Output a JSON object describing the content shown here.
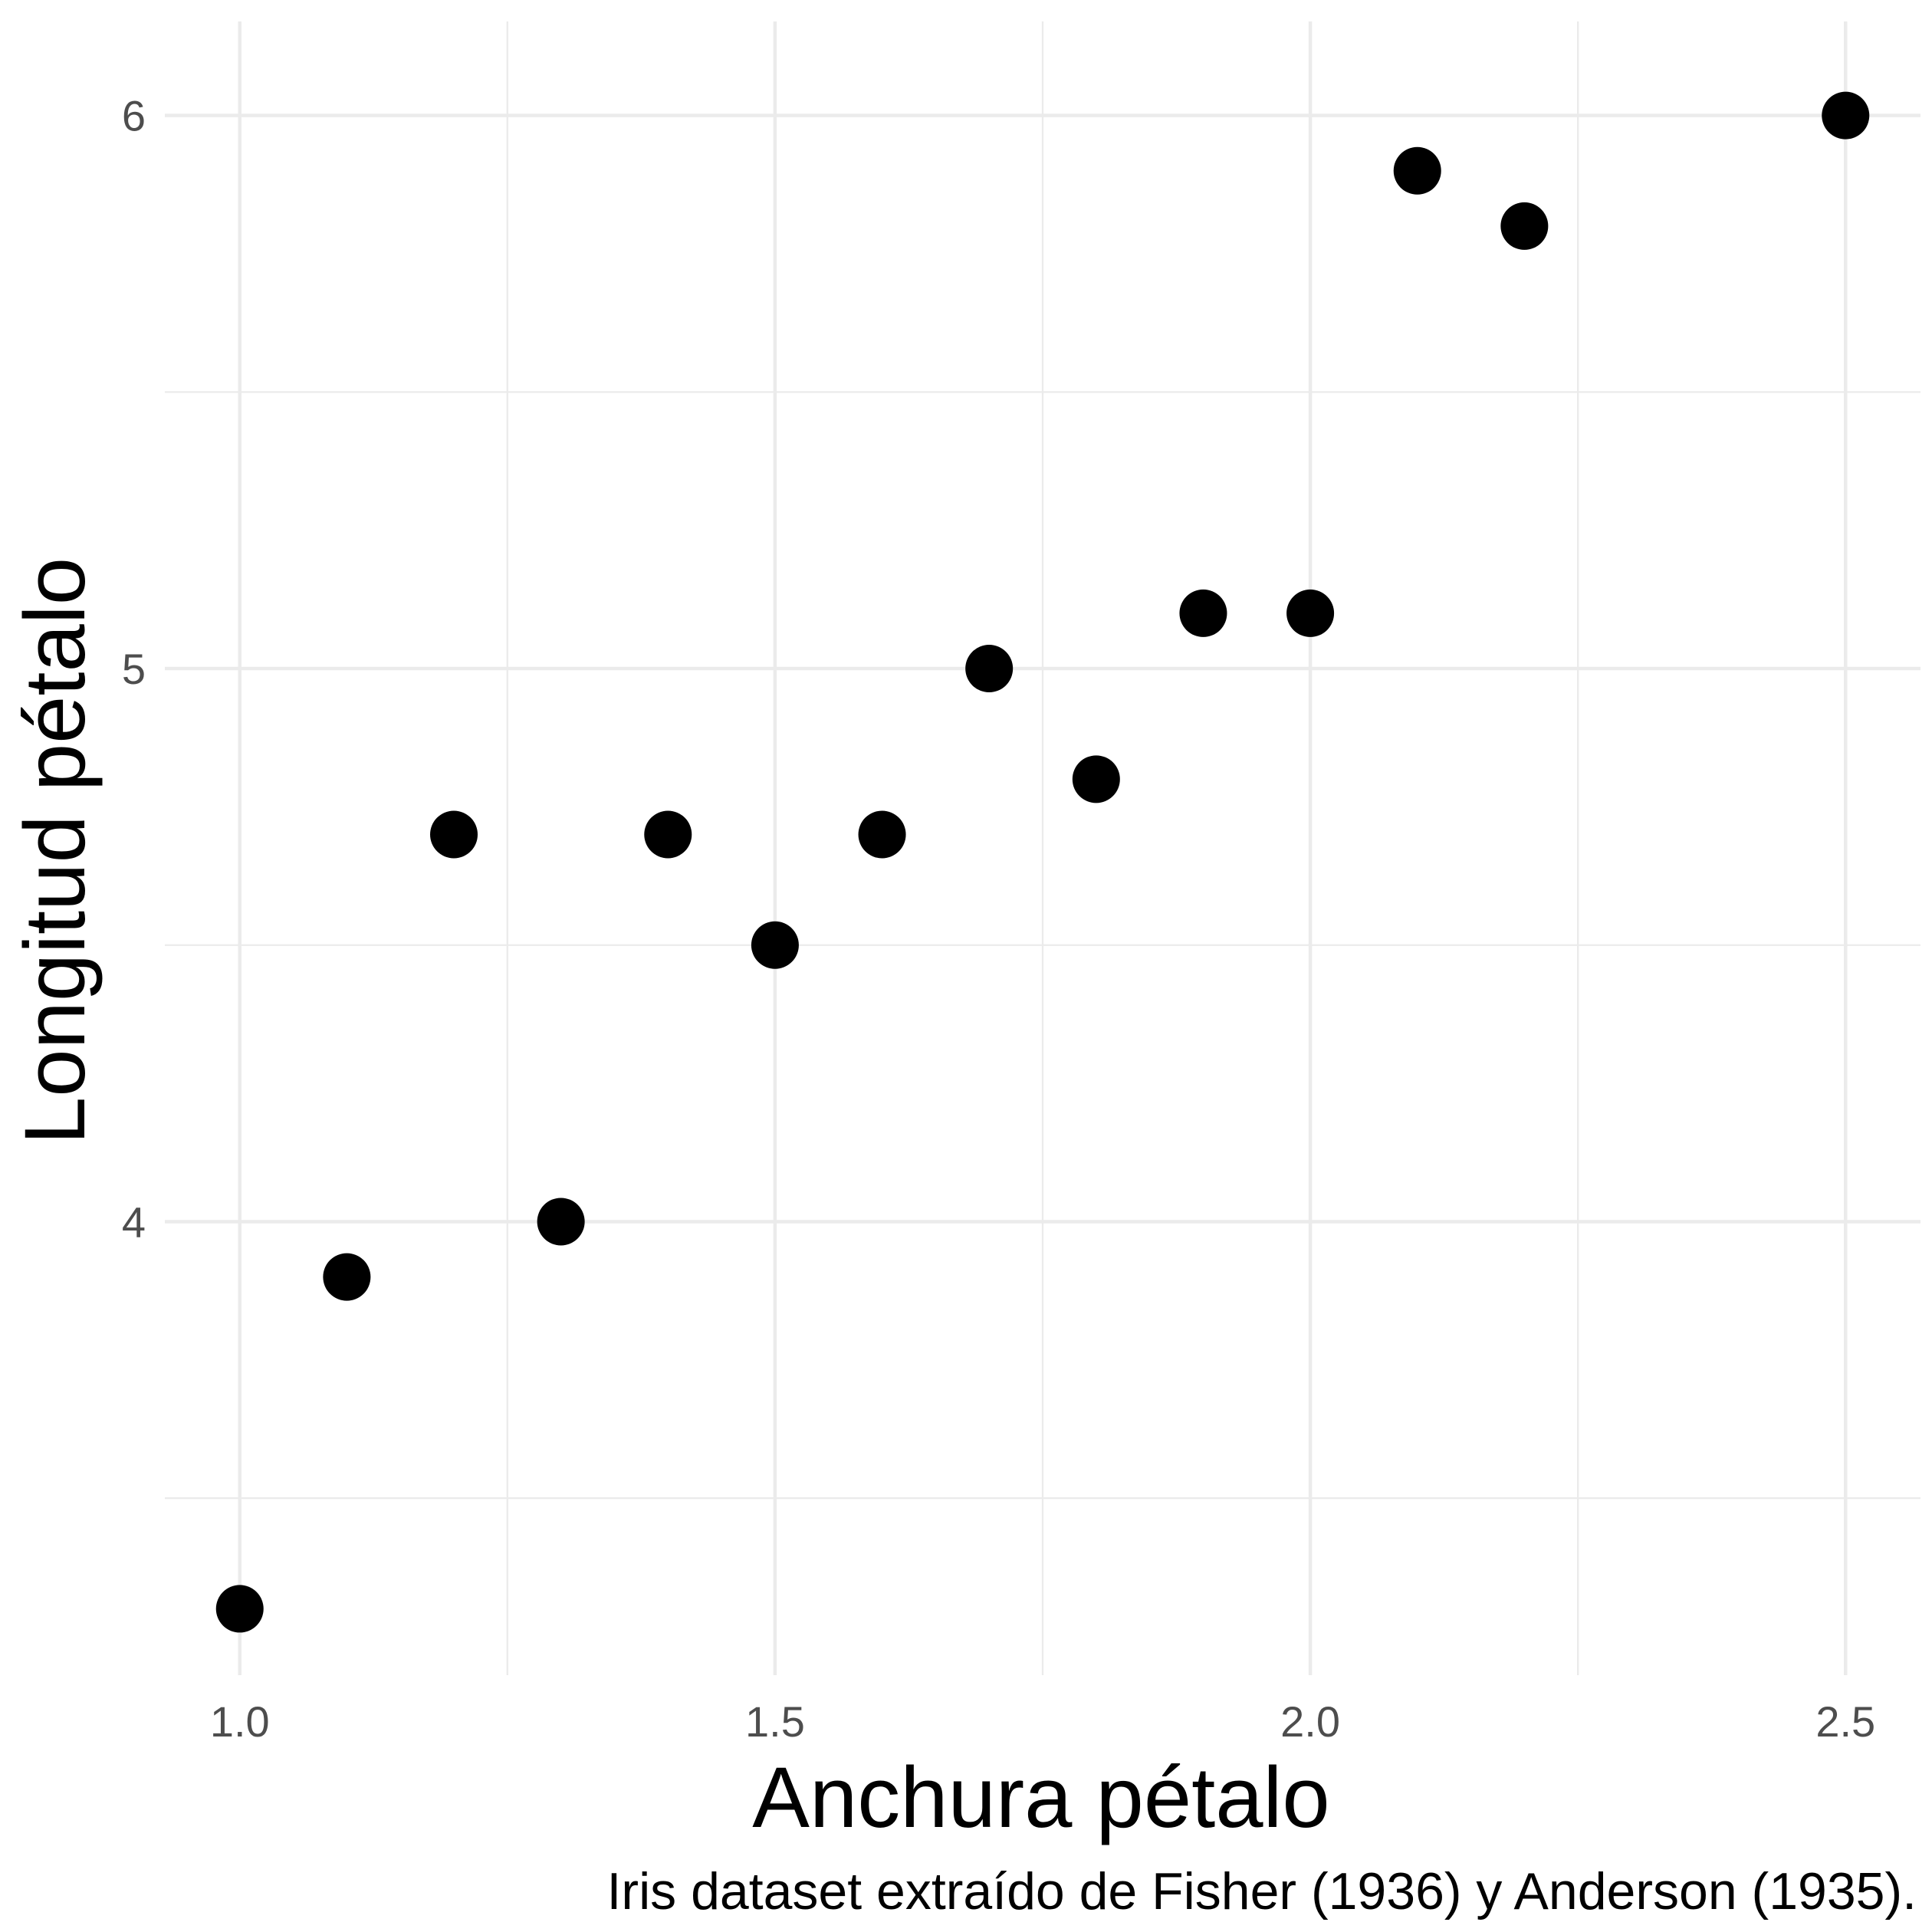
{
  "chart_data": {
    "type": "scatter",
    "xlabel": "Anchura pétalo",
    "ylabel": "Longitud pétalo",
    "caption": "Iris dataset extraído de Fisher (1936) y Anderson (1935).",
    "xlim": [
      0.93,
      2.57
    ],
    "ylim": [
      3.18,
      6.17
    ],
    "x_ticks": [
      {
        "value": 1.0,
        "label": "1.0"
      },
      {
        "value": 1.5,
        "label": "1.5"
      },
      {
        "value": 2.0,
        "label": "2.0"
      },
      {
        "value": 2.5,
        "label": "2.5"
      }
    ],
    "x_minor": [
      1.25,
      1.75,
      2.25
    ],
    "y_ticks": [
      {
        "value": 4,
        "label": "4"
      },
      {
        "value": 5,
        "label": "5"
      },
      {
        "value": 6,
        "label": "6"
      }
    ],
    "y_minor": [
      3.5,
      4.5,
      5.5
    ],
    "grid": true,
    "point_color": "#000000",
    "grid_color": "#ebebeb",
    "points": [
      {
        "x": 1.0,
        "y": 3.3
      },
      {
        "x": 1.1,
        "y": 3.9
      },
      {
        "x": 1.2,
        "y": 4.7
      },
      {
        "x": 1.3,
        "y": 4.0
      },
      {
        "x": 1.4,
        "y": 4.7
      },
      {
        "x": 1.5,
        "y": 4.5
      },
      {
        "x": 1.6,
        "y": 4.7
      },
      {
        "x": 1.7,
        "y": 5.0
      },
      {
        "x": 1.8,
        "y": 4.8
      },
      {
        "x": 1.9,
        "y": 5.1
      },
      {
        "x": 2.0,
        "y": 5.1
      },
      {
        "x": 2.1,
        "y": 5.9
      },
      {
        "x": 2.2,
        "y": 5.8
      },
      {
        "x": 2.5,
        "y": 6.0
      }
    ]
  }
}
